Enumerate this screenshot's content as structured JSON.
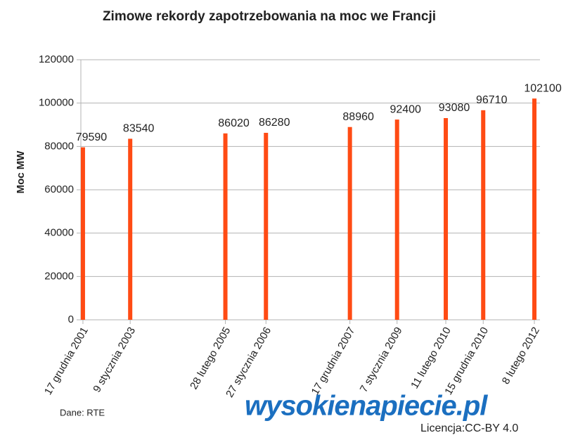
{
  "chart_data": {
    "type": "bar",
    "title": "Zimowe rekordy zapotrzebowania na moc we Francji",
    "y_label": "Moc MW",
    "x": [
      "2001-12-17",
      "2003-01-09",
      "2005-02-28",
      "2006-01-27",
      "2007-12-17",
      "2009-01-07",
      "2010-02-11",
      "2010-12-15",
      "2012-02-08"
    ],
    "xticks": [
      {
        "value": "2001-12-17",
        "label": "17 grudnia 2001"
      },
      {
        "value": "2003-01-09",
        "label": "9 stycznia 2003"
      },
      {
        "value": "2005-02-28",
        "label": "28 lutego 2005"
      },
      {
        "value": "2006-01-27",
        "label": "27 stycznia 2006"
      },
      {
        "value": "2007-12-17",
        "label": "17 grudnia 2007"
      },
      {
        "value": "2009-01-07",
        "label": "7 stycznia 2009"
      },
      {
        "value": "2010-02-11",
        "label": "11 lutego 2010"
      },
      {
        "value": "2010-12-15",
        "label": "15 grudnia 2010"
      },
      {
        "value": "2012-02-08",
        "label": "8 lutego 2012"
      }
    ],
    "xlim": [
      "2001-11-30",
      "2012-03-25"
    ],
    "values": [
      79590,
      83540,
      86020,
      86280,
      88960,
      92400,
      93080,
      96710,
      102100
    ],
    "color": "#ff4b14",
    "ylim": [
      0,
      120000
    ],
    "yticks": [
      0,
      20000,
      40000,
      60000,
      80000,
      100000,
      120000
    ],
    "grid": true
  },
  "footer": {
    "source": "Dane: RTE",
    "logo": "wysokienapiecie.pl",
    "license": "Licencja:CC-BY 4.0"
  }
}
